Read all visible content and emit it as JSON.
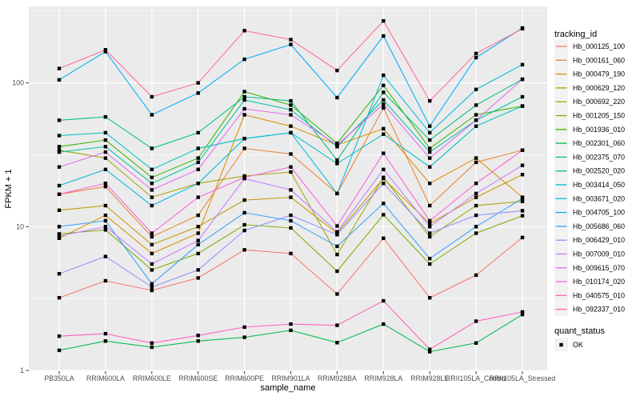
{
  "chart_data": {
    "type": "line",
    "title": "",
    "xlabel": "sample_name",
    "ylabel": "FPKM + 1",
    "y_scale": "log10",
    "y_ticks": [
      1,
      10,
      100
    ],
    "ylim": [
      1,
      340
    ],
    "grid": "on",
    "panel_bg": "#EBEBEB",
    "grid_color": "#FFFFFF",
    "marker": "black-square",
    "legend_position": "right",
    "legend": {
      "color_title": "tracking_id",
      "shape_title": "quant_status",
      "shape_items": [
        {
          "label": "OK",
          "marker": "black-square"
        }
      ]
    },
    "categories": [
      "PB350LA",
      "RRIM600LA",
      "RRIM600LE",
      "RRIM600SE",
      "RRIM600PE",
      "RRIM901LA",
      "RRIM928BA",
      "RRIM928LA",
      "RRIM928LE",
      "RRII105LA_Control",
      "RRII105LA_Stressed"
    ],
    "series": [
      {
        "name": "Hb_000125_100",
        "color": "#F8766D",
        "values": [
          3.2,
          4.2,
          3.6,
          4.4,
          6.9,
          6.5,
          3.4,
          8.3,
          3.2,
          4.6,
          8.4
        ]
      },
      {
        "name": "Hb_000161_060",
        "color": "#EA8331",
        "values": [
          16.8,
          19,
          8.5,
          12,
          35,
          32,
          17,
          67,
          14,
          28,
          34
        ]
      },
      {
        "name": "Hb_000479_190",
        "color": "#D89000",
        "values": [
          8.3,
          12,
          6.5,
          9,
          60,
          50,
          37,
          48,
          20,
          30,
          16
        ]
      },
      {
        "name": "Hb_000629_120",
        "color": "#C09B00",
        "values": [
          13,
          14,
          7.5,
          10,
          15.3,
          16,
          9,
          21.6,
          10.5,
          16,
          23
        ]
      },
      {
        "name": "Hb_000692_220",
        "color": "#A3A500",
        "values": [
          34,
          30,
          16,
          20,
          22.5,
          24,
          6.4,
          22,
          8.5,
          14,
          15
        ]
      },
      {
        "name": "Hb_001205_150",
        "color": "#7CAE00",
        "values": [
          8.9,
          9.5,
          5,
          6.5,
          10.3,
          9.8,
          4.9,
          12.1,
          5.5,
          9,
          11.9
        ]
      },
      {
        "name": "Hb_001936_010",
        "color": "#39B600",
        "values": [
          36,
          40,
          22,
          30,
          87,
          70,
          38,
          96,
          35,
          60,
          69
        ]
      },
      {
        "name": "Hb_002301_060",
        "color": "#00BB4E",
        "values": [
          1.38,
          1.6,
          1.45,
          1.6,
          1.7,
          1.9,
          1.56,
          2.1,
          1.35,
          1.55,
          2.45
        ]
      },
      {
        "name": "Hb_002375_070",
        "color": "#00BF7D",
        "values": [
          55,
          58,
          35,
          45,
          80,
          75,
          29,
          86,
          40,
          70,
          106
        ]
      },
      {
        "name": "Hb_002520_020",
        "color": "#00C1A3",
        "values": [
          33,
          36,
          20,
          28,
          76,
          65,
          36,
          76,
          33,
          55,
          80
        ]
      },
      {
        "name": "Hb_003414_050",
        "color": "#00BFC4",
        "values": [
          43,
          45,
          25,
          35,
          41,
          45,
          27.5,
          44,
          26,
          50,
          69
        ]
      },
      {
        "name": "Hb_003671_020",
        "color": "#00BAE0",
        "values": [
          19.3,
          25,
          14,
          20,
          41,
          45,
          17,
          113,
          45,
          90,
          134
        ]
      },
      {
        "name": "Hb_004705_100",
        "color": "#00B0F6",
        "values": [
          105,
          165,
          60,
          85,
          146,
          185,
          79,
          212,
          50,
          150,
          241
        ]
      },
      {
        "name": "Hb_005686_060",
        "color": "#35A2FF",
        "values": [
          10,
          11,
          4,
          7.5,
          12.5,
          11,
          7.3,
          14.5,
          6,
          10,
          15.7
        ]
      },
      {
        "name": "Hb_006429_010",
        "color": "#9590FF",
        "values": [
          4.7,
          6.2,
          3.8,
          5,
          9.4,
          12,
          8.8,
          20,
          9,
          12,
          12.9
        ]
      },
      {
        "name": "Hb_007009_010",
        "color": "#C77CFF",
        "values": [
          8.6,
          10,
          5.5,
          8,
          21.6,
          18,
          9.2,
          25,
          10,
          17,
          26.7
        ]
      },
      {
        "name": "Hb_009615_070",
        "color": "#E76BF3",
        "values": [
          26,
          33,
          18,
          25,
          66,
          60,
          37,
          71,
          30,
          55,
          106
        ]
      },
      {
        "name": "Hb_010174_020",
        "color": "#FA62DB",
        "values": [
          16.8,
          20,
          9,
          16,
          22,
          26,
          10.1,
          32.4,
          11,
          20,
          34
        ]
      },
      {
        "name": "Hb_040575_010",
        "color": "#FF62BC",
        "values": [
          1.73,
          1.8,
          1.55,
          1.75,
          2.0,
          2.1,
          2.06,
          3.05,
          1.4,
          2.2,
          2.55
        ]
      },
      {
        "name": "Hb_092337_010",
        "color": "#FF6A98",
        "values": [
          126,
          170,
          80,
          100,
          231,
          200,
          122,
          270,
          75,
          160,
          238
        ]
      }
    ]
  }
}
